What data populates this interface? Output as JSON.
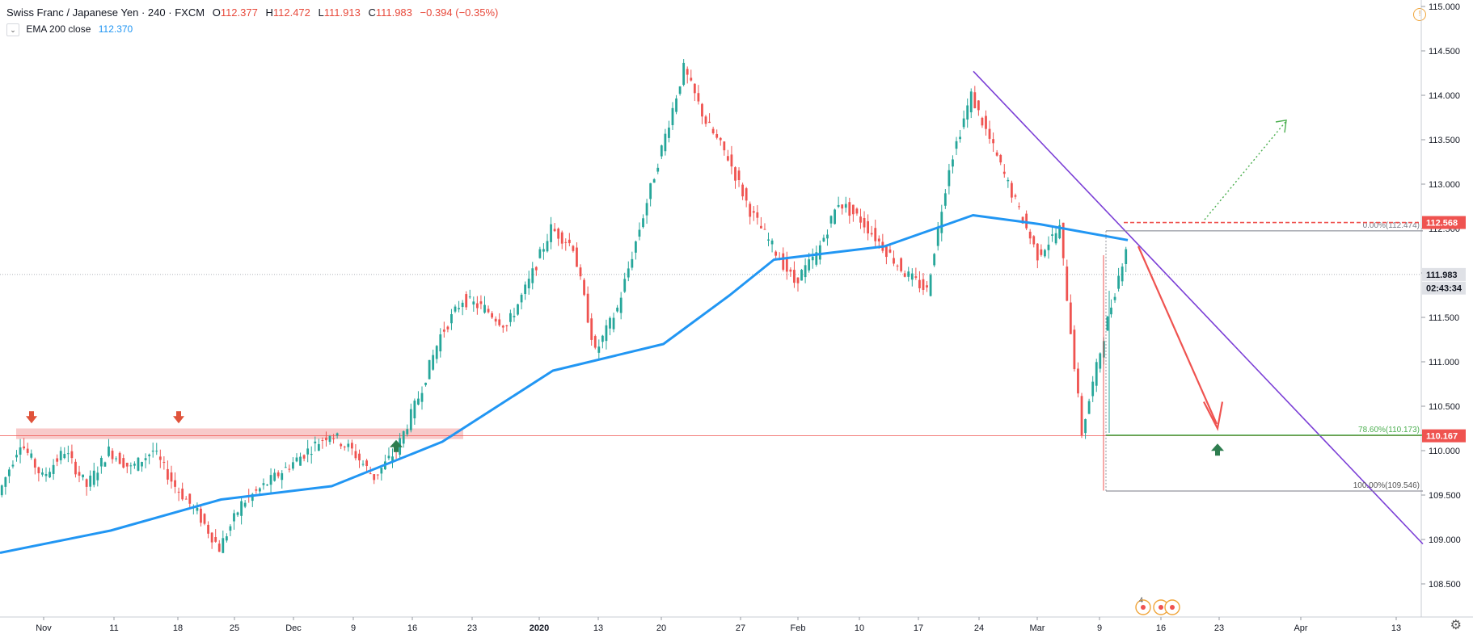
{
  "header": {
    "title": "Swiss Franc / Japanese Yen",
    "interval": "240",
    "source": "FXCM",
    "o_label": "O",
    "o": "112.377",
    "h_label": "H",
    "h": "112.472",
    "l_label": "L",
    "l": "111.913",
    "c_label": "C",
    "c": "111.983",
    "change": "−0.394 (−0.35%)"
  },
  "indicator": {
    "label": "EMA 200 close",
    "value": "112.370",
    "chevron": "⌄"
  },
  "colors": {
    "up": "#26a69a",
    "down": "#ef5350",
    "ema": "#2196f3",
    "trend": "#7b3fd6",
    "support": "#f4a7a7",
    "fib_green": "#4caf50",
    "axis_text": "#131722",
    "price_tag_red": "#ef5350"
  },
  "chart_data": {
    "type": "candlestick",
    "title": "Swiss Franc / Japanese Yen",
    "ylim": [
      108.2,
      115.0
    ],
    "y_ticks": [
      "115.000",
      "114.500",
      "114.000",
      "113.500",
      "113.000",
      "112.500",
      "112.000",
      "111.500",
      "111.000",
      "110.500",
      "110.000",
      "109.500",
      "109.000",
      "108.500"
    ],
    "x_ticks": [
      "Nov",
      "11",
      "18",
      "25",
      "Dec",
      "9",
      "16",
      "23",
      "2020",
      "13",
      "20",
      "27",
      "Feb",
      "10",
      "17",
      "24",
      "Mar",
      "9",
      "16",
      "23",
      "Apr",
      "13"
    ],
    "price_path": [
      [
        0,
        109.5
      ],
      [
        1,
        110.1
      ],
      [
        2,
        109.7
      ],
      [
        3,
        110.0
      ],
      [
        4,
        109.6
      ],
      [
        5,
        110.0
      ],
      [
        6,
        109.8
      ],
      [
        7,
        110.0
      ],
      [
        8,
        109.6
      ],
      [
        9,
        109.3
      ],
      [
        10,
        108.9
      ],
      [
        11,
        109.4
      ],
      [
        12,
        109.6
      ],
      [
        13,
        109.8
      ],
      [
        14,
        110.0
      ],
      [
        15,
        110.2
      ],
      [
        16,
        110.0
      ],
      [
        17,
        109.7
      ],
      [
        18,
        110.0
      ],
      [
        19,
        110.6
      ],
      [
        20,
        111.3
      ],
      [
        21,
        111.7
      ],
      [
        22,
        111.6
      ],
      [
        23,
        111.4
      ],
      [
        24,
        111.9
      ],
      [
        25,
        112.5
      ],
      [
        26,
        112.3
      ],
      [
        27,
        111.1
      ],
      [
        28,
        111.6
      ],
      [
        29,
        112.5
      ],
      [
        30,
        113.4
      ],
      [
        31,
        114.3
      ],
      [
        32,
        113.7
      ],
      [
        33,
        113.3
      ],
      [
        34,
        112.7
      ],
      [
        35,
        112.3
      ],
      [
        36,
        111.9
      ],
      [
        37,
        112.2
      ],
      [
        38,
        112.8
      ],
      [
        39,
        112.6
      ],
      [
        40,
        112.3
      ],
      [
        41,
        112.0
      ],
      [
        42,
        111.8
      ],
      [
        43,
        113.2
      ],
      [
        44,
        114.0
      ],
      [
        45,
        113.4
      ],
      [
        46,
        112.8
      ],
      [
        47,
        112.2
      ],
      [
        48,
        112.5
      ],
      [
        49,
        110.2
      ],
      [
        50,
        111.3
      ],
      [
        51,
        112.3
      ]
    ],
    "ema_200": [
      [
        0,
        108.85
      ],
      [
        5,
        109.1
      ],
      [
        10,
        109.45
      ],
      [
        15,
        109.6
      ],
      [
        20,
        110.1
      ],
      [
        25,
        110.9
      ],
      [
        30,
        111.2
      ],
      [
        33,
        111.75
      ],
      [
        35,
        112.15
      ],
      [
        40,
        112.3
      ],
      [
        44,
        112.65
      ],
      [
        47,
        112.55
      ],
      [
        51,
        112.37
      ]
    ],
    "current_price": "111.983",
    "countdown": "02:43:34",
    "resistance_tag": "112.568",
    "support_tag": "110.167",
    "support_zone": [
      110.13,
      110.25
    ],
    "fib": [
      {
        "level": "0.00%(112.474)",
        "price": 112.474
      },
      {
        "level": "78.60%(110.173)",
        "price": 110.173
      },
      {
        "level": "100.00%(109.546)",
        "price": 109.546
      }
    ],
    "trendline": [
      [
        114.27,
        "Feb 23"
      ],
      [
        108.95,
        "Apr 15"
      ]
    ]
  },
  "bottom_badges": {
    "count": "4"
  }
}
